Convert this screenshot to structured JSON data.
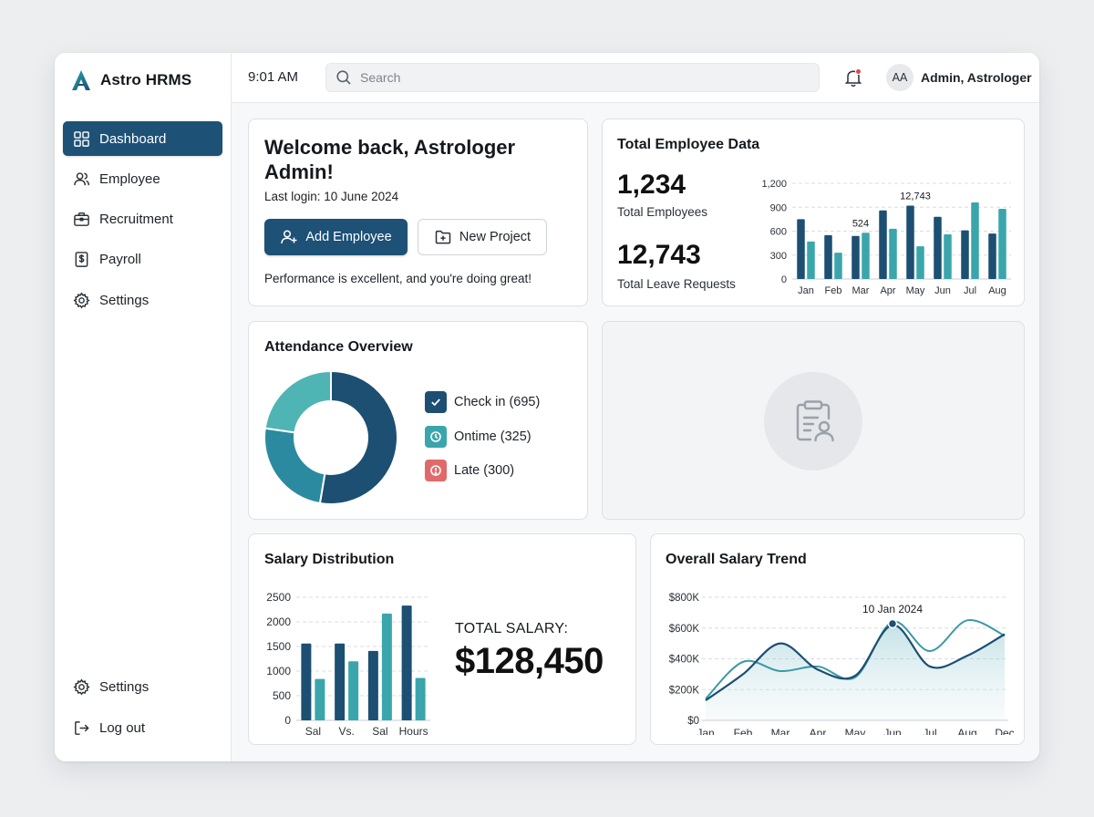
{
  "app": {
    "name": "Astro HRMS"
  },
  "sidebar": {
    "items": [
      {
        "label": "Dashboard",
        "icon": "grid-icon",
        "active": true
      },
      {
        "label": "Employee",
        "icon": "users-icon"
      },
      {
        "label": "Recruitment",
        "icon": "briefcase-icon"
      },
      {
        "label": "Payroll",
        "icon": "dollar-icon"
      },
      {
        "label": "Settings",
        "icon": "gear-icon"
      }
    ],
    "bottom": [
      {
        "label": "Settings",
        "icon": "gear-icon"
      },
      {
        "label": "Log out",
        "icon": "logout-icon"
      }
    ]
  },
  "header": {
    "time": "9:01 AM",
    "search_placeholder": "Search",
    "avatar_initials": "AA",
    "user_name": "Admin, Astrologer",
    "notification_dot_color": "#d94b4b"
  },
  "welcome": {
    "title": "Welcome back, Astrologer Admin!",
    "last_login": "Last login: 10 June 2024",
    "add_employee": "Add Employee",
    "new_project": "New Project",
    "message": "Performance is excellent, and you're doing great!"
  },
  "employee_data": {
    "title": "Total Employee Data",
    "total_employees": "1,234",
    "total_employees_label": "Total Employees",
    "total_leave": "12,743",
    "total_leave_label": "Total Leave Requests"
  },
  "attendance": {
    "title": "Attendance Overview",
    "legend": [
      {
        "label": "Check in (695)",
        "color": "#1c4f72",
        "icon": "check-icon"
      },
      {
        "label": "Ontime (325)",
        "color": "#3aa6ab",
        "icon": "clock-icon"
      },
      {
        "label": "Late (300)",
        "color": "#e06a6a",
        "icon": "alert-icon"
      }
    ]
  },
  "salary_distribution": {
    "title": "Salary Distribution",
    "total_label": "TOTAL SALARY:",
    "total_value": "$128,450"
  },
  "salary_trend": {
    "title": "Overall Salary Trend"
  },
  "colors": {
    "primary": "#1d5176",
    "navy": "#1c4f72",
    "teal": "#3aa6ab",
    "danger": "#e06a6a"
  },
  "chart_data": [
    {
      "id": "employee-bars",
      "type": "bar",
      "categories": [
        "Jan",
        "Feb",
        "Mar",
        "Apr",
        "May",
        "Jun",
        "Jul",
        "Aug"
      ],
      "series": [
        {
          "values": [
            750,
            550,
            540,
            860,
            920,
            780,
            610,
            570
          ]
        },
        {
          "values": [
            470,
            330,
            580,
            630,
            410,
            560,
            960,
            880
          ]
        }
      ],
      "yticks": [
        "0",
        "300",
        "600",
        "900",
        "1,200"
      ],
      "ylim": [
        0,
        1200
      ],
      "annotations": [
        {
          "category": "Mar",
          "text": "524"
        },
        {
          "category": "May",
          "text": "12,743"
        }
      ],
      "grid": true
    },
    {
      "id": "attendance-donut",
      "type": "pie",
      "categories": [
        "Check in",
        "Ontime",
        "Late"
      ],
      "values": [
        695,
        325,
        300
      ]
    },
    {
      "id": "salary-distribution",
      "type": "bar",
      "categories": [
        "Sal",
        "Vs.",
        "Sal",
        "Hours"
      ],
      "series": [
        {
          "values": [
            1560,
            1560,
            1410,
            2330
          ]
        },
        {
          "values": [
            840,
            1200,
            2170,
            860
          ]
        }
      ],
      "yticks": [
        "0",
        "500",
        "1000",
        "1500",
        "2000",
        "2500"
      ],
      "ylim": [
        0,
        2500
      ],
      "grid": true
    },
    {
      "id": "salary-trend",
      "type": "area",
      "x": [
        "Jan",
        "Feb",
        "Mar",
        "Apr",
        "May",
        "Jun",
        "Jul",
        "Aug",
        "Dec"
      ],
      "series": [
        {
          "values": [
            130,
            300,
            500,
            330,
            290,
            620,
            350,
            420,
            560
          ]
        },
        {
          "values": [
            140,
            380,
            320,
            350,
            280,
            640,
            450,
            650,
            550
          ]
        }
      ],
      "yticks": [
        "$0",
        "$200K",
        "$400K",
        "$600K",
        "$800K"
      ],
      "ylim": [
        0,
        800
      ],
      "annotations": [
        {
          "x": "Jun",
          "text": "10 Jan 2024"
        }
      ],
      "grid": true
    }
  ]
}
